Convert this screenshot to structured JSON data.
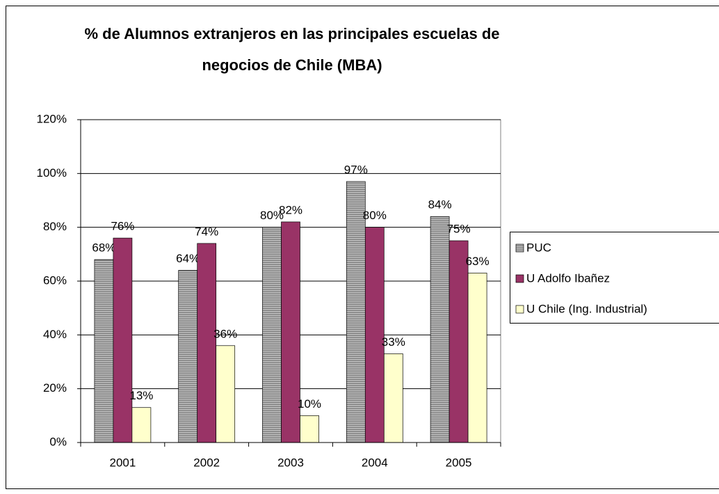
{
  "chart_data": {
    "type": "bar",
    "title": [
      "% de Alumnos extranjeros en las principales escuelas de",
      "negocios de Chile (MBA)"
    ],
    "categories": [
      "2001",
      "2002",
      "2003",
      "2004",
      "2005"
    ],
    "series": [
      {
        "name": "PUC",
        "color": "#c0c0c0",
        "values": [
          68,
          64,
          80,
          97,
          84
        ],
        "value_labels": [
          "68%",
          "64%",
          "80%",
          "97%",
          "84%"
        ]
      },
      {
        "name": "U Adolfo Ibañez",
        "color": "#993366",
        "values": [
          76,
          74,
          82,
          80,
          75
        ],
        "value_labels": [
          "76%",
          "74%",
          "82%",
          "80%",
          "75%"
        ]
      },
      {
        "name": "U Chile (Ing. Industrial)",
        "color": "#ffffcc",
        "values": [
          13,
          36,
          10,
          33,
          63
        ],
        "value_labels": [
          "13%",
          "36%",
          "10%",
          "33%",
          "63%"
        ]
      }
    ],
    "ylim": [
      0,
      120
    ],
    "yticks": [
      {
        "value": 0,
        "label": "0%"
      },
      {
        "value": 20,
        "label": "20%"
      },
      {
        "value": 40,
        "label": "40%"
      },
      {
        "value": 60,
        "label": "60%"
      },
      {
        "value": 80,
        "label": "80%"
      },
      {
        "value": 100,
        "label": "100%"
      },
      {
        "value": 120,
        "label": "120%"
      }
    ],
    "grid": true,
    "legend": "right"
  }
}
